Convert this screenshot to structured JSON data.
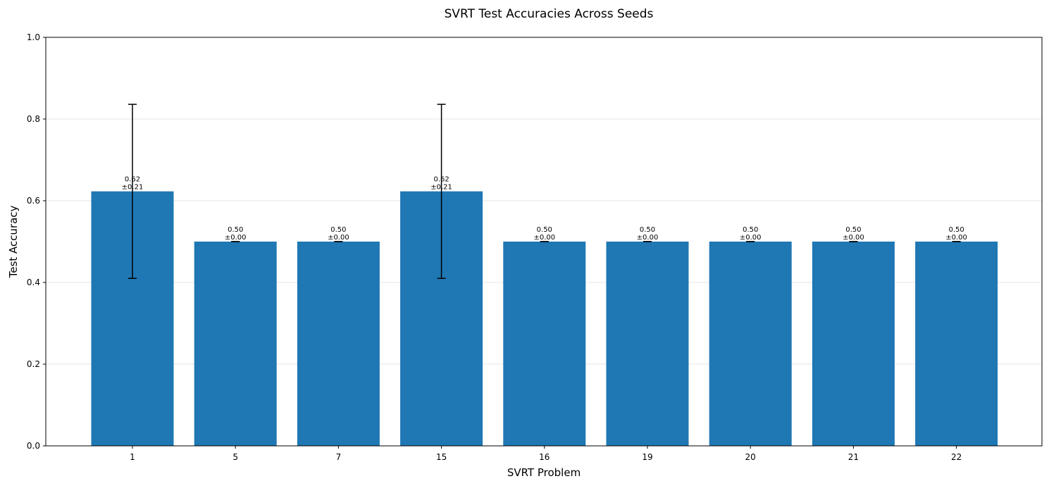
{
  "chart_data": {
    "type": "bar",
    "title": "SVRT Test Accuracies Across Seeds",
    "xlabel": "SVRT Problem",
    "ylabel": "Test Accuracy",
    "categories": [
      "1",
      "5",
      "7",
      "15",
      "16",
      "19",
      "20",
      "21",
      "22"
    ],
    "values": [
      0.623,
      0.5,
      0.5,
      0.623,
      0.5,
      0.5,
      0.5,
      0.5,
      0.5
    ],
    "errors": [
      0.213,
      0.0,
      0.0,
      0.213,
      0.0,
      0.0,
      0.0,
      0.0,
      0.0
    ],
    "value_labels": [
      "0.62",
      "0.50",
      "0.50",
      "0.62",
      "0.50",
      "0.50",
      "0.50",
      "0.50",
      "0.50"
    ],
    "error_labels": [
      "±0.21",
      "±0.00",
      "±0.00",
      "±0.21",
      "±0.00",
      "±0.00",
      "±0.00",
      "±0.00",
      "±0.00"
    ],
    "ylim": [
      0,
      1.0
    ],
    "yticks": [
      0.0,
      0.2,
      0.4,
      0.6,
      0.8,
      1.0
    ],
    "ytick_labels": [
      "0.0",
      "0.2",
      "0.4",
      "0.6",
      "0.8",
      "1.0"
    ],
    "grid": "y",
    "bar_color": "#1f77b4",
    "error_color": "#000000",
    "grid_color": "#e6e6e6"
  }
}
